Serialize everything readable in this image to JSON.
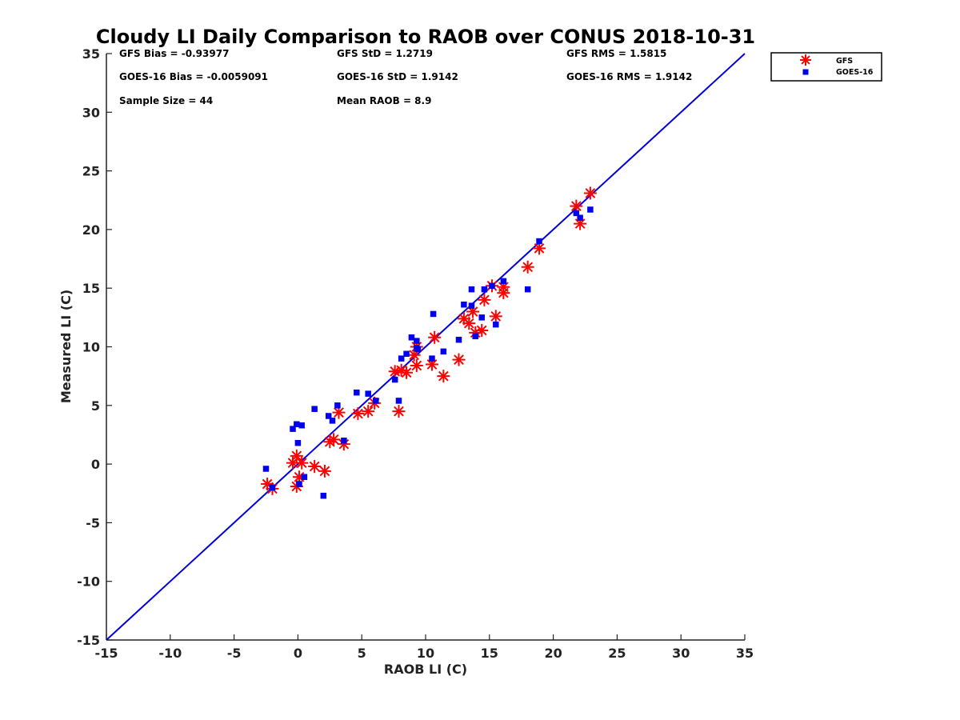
{
  "chart_data": {
    "type": "scatter",
    "title": "Cloudy LI Daily Comparison to RAOB over CONUS 2018-10-31",
    "xlabel": "RAOB LI (C)",
    "ylabel": "Measured LI (C)",
    "xlim": [
      -15,
      35
    ],
    "ylim": [
      -15,
      35
    ],
    "xticks": [
      -15,
      -10,
      -5,
      0,
      5,
      10,
      15,
      20,
      25,
      30,
      35
    ],
    "yticks": [
      -15,
      -10,
      -5,
      0,
      5,
      10,
      15,
      20,
      25,
      30,
      35
    ],
    "grid": false,
    "legend_position": "outside-top-right",
    "reference_line": {
      "x": [
        -15,
        35
      ],
      "y": [
        -15,
        35
      ],
      "color": "#0000dd"
    },
    "stats": [
      [
        "GFS Bias = -0.93977",
        "GFS StD = 1.2719",
        "GFS RMS = 1.5815"
      ],
      [
        "GOES-16 Bias = -0.0059091",
        "GOES-16 StD = 1.9142",
        "GOES-16 RMS = 1.9142"
      ],
      [
        "Sample Size = 44",
        "Mean RAOB = 8.9",
        ""
      ]
    ],
    "series": [
      {
        "name": "GFS",
        "marker": "asterisk",
        "color": "#ff0000",
        "points": [
          [
            -2.4,
            -1.7
          ],
          [
            -2.0,
            -2.1
          ],
          [
            -0.4,
            0.1
          ],
          [
            -0.1,
            0.7
          ],
          [
            -0.1,
            -1.9
          ],
          [
            0.1,
            -1.1
          ],
          [
            0.3,
            0.1
          ],
          [
            1.3,
            -0.2
          ],
          [
            2.1,
            -0.6
          ],
          [
            2.5,
            1.9
          ],
          [
            2.8,
            2.1
          ],
          [
            3.2,
            4.4
          ],
          [
            3.6,
            1.7
          ],
          [
            4.7,
            4.3
          ],
          [
            5.5,
            4.5
          ],
          [
            6.0,
            5.2
          ],
          [
            7.6,
            7.9
          ],
          [
            7.9,
            4.5
          ],
          [
            8.1,
            8.0
          ],
          [
            8.5,
            7.8
          ],
          [
            9.1,
            9.3
          ],
          [
            9.3,
            8.4
          ],
          [
            9.3,
            10.0
          ],
          [
            10.5,
            8.5
          ],
          [
            10.7,
            10.8
          ],
          [
            11.4,
            7.5
          ],
          [
            12.6,
            8.9
          ],
          [
            13.0,
            12.4
          ],
          [
            13.4,
            12.0
          ],
          [
            13.7,
            13.0
          ],
          [
            13.9,
            11.2
          ],
          [
            14.4,
            11.4
          ],
          [
            14.6,
            14.0
          ],
          [
            15.2,
            15.2
          ],
          [
            15.5,
            12.6
          ],
          [
            16.1,
            15.1
          ],
          [
            16.1,
            14.6
          ],
          [
            18.0,
            16.8
          ],
          [
            18.9,
            18.4
          ],
          [
            21.8,
            22.0
          ],
          [
            22.1,
            20.5
          ],
          [
            22.9,
            23.1
          ]
        ]
      },
      {
        "name": "GOES-16",
        "marker": "square",
        "color": "#0000ee",
        "points": [
          [
            -2.5,
            -0.4
          ],
          [
            -2.0,
            -2.0
          ],
          [
            -0.4,
            3.0
          ],
          [
            -0.1,
            3.4
          ],
          [
            0.0,
            1.8
          ],
          [
            0.1,
            -1.7
          ],
          [
            0.3,
            3.3
          ],
          [
            0.5,
            -1.1
          ],
          [
            1.3,
            4.7
          ],
          [
            2.0,
            -2.7
          ],
          [
            2.4,
            4.1
          ],
          [
            2.7,
            3.7
          ],
          [
            3.1,
            5.0
          ],
          [
            3.6,
            2.0
          ],
          [
            4.6,
            6.1
          ],
          [
            5.5,
            6.0
          ],
          [
            6.1,
            5.4
          ],
          [
            7.6,
            7.2
          ],
          [
            7.9,
            5.4
          ],
          [
            8.1,
            9.0
          ],
          [
            8.5,
            9.4
          ],
          [
            8.9,
            10.8
          ],
          [
            9.3,
            10.5
          ],
          [
            9.3,
            9.9
          ],
          [
            9.4,
            9.8
          ],
          [
            10.5,
            9.0
          ],
          [
            10.6,
            12.8
          ],
          [
            11.4,
            9.6
          ],
          [
            12.6,
            10.6
          ],
          [
            13.0,
            13.6
          ],
          [
            13.6,
            13.5
          ],
          [
            13.6,
            14.9
          ],
          [
            13.9,
            10.9
          ],
          [
            14.4,
            12.5
          ],
          [
            14.6,
            14.9
          ],
          [
            15.2,
            15.2
          ],
          [
            15.5,
            11.9
          ],
          [
            16.1,
            15.6
          ],
          [
            18.0,
            14.9
          ],
          [
            18.9,
            19.0
          ],
          [
            21.8,
            21.4
          ],
          [
            22.1,
            21.0
          ],
          [
            22.9,
            21.7
          ]
        ]
      }
    ]
  }
}
